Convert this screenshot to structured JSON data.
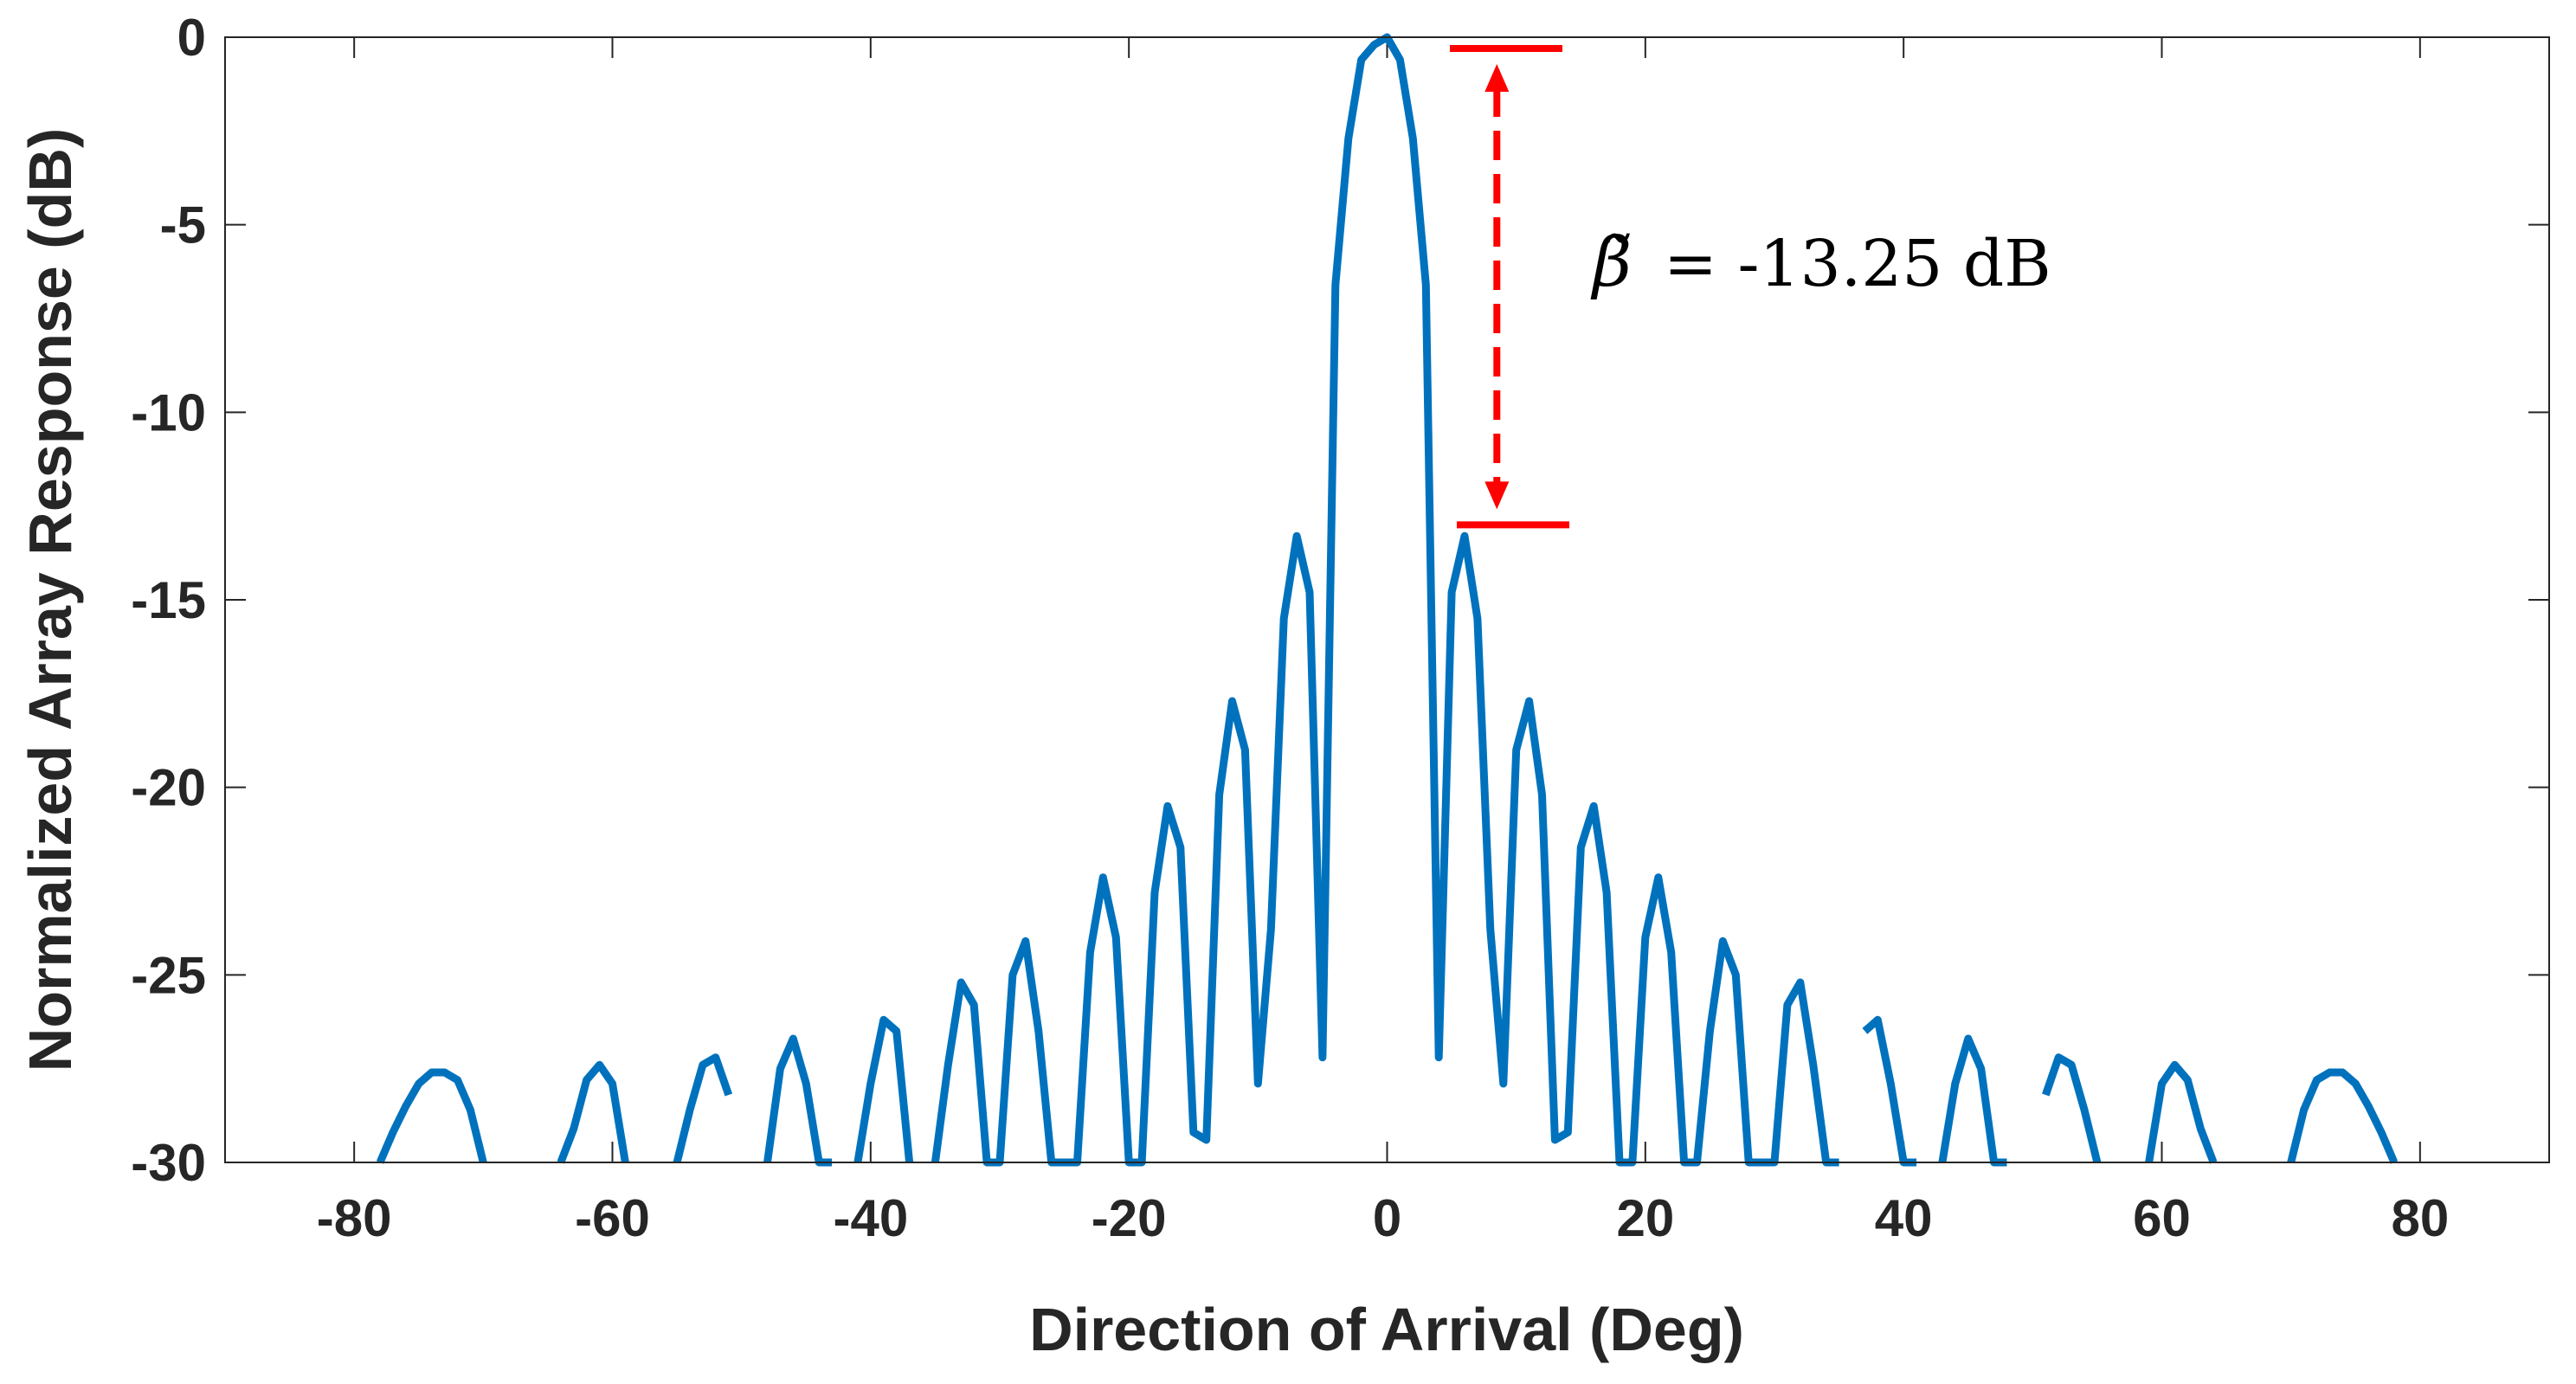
{
  "chart_data": {
    "type": "line",
    "title": "",
    "xlabel": "Direction of Arrival (Deg)",
    "ylabel": "Normalized Array Response (dB)",
    "xlim": [
      -90,
      90
    ],
    "ylim": [
      -30,
      0
    ],
    "xticks": [
      -80,
      -60,
      -40,
      -20,
      0,
      20,
      40,
      60,
      80
    ],
    "yticks": [
      0,
      -5,
      -10,
      -15,
      -20,
      -25,
      -30
    ],
    "xtick_labels": [
      "-80",
      "-60",
      "-40",
      "-20",
      "0",
      "20",
      "40",
      "60",
      "80"
    ],
    "ytick_labels": [
      "0",
      "-5",
      "-10",
      "-15",
      "-20",
      "-25",
      "-30"
    ],
    "grid": false,
    "series": [
      {
        "name": "Normalized Array Response",
        "color": "#0072BD",
        "x": [
          -78,
          -77,
          -76,
          -75,
          -74,
          -73,
          -72,
          -71,
          -70,
          -64,
          -63,
          -62,
          -61,
          -60,
          -59,
          -55,
          -54,
          -53,
          -52,
          -51,
          -48,
          -47,
          -46,
          -45,
          -44,
          -43,
          -41,
          -40,
          -39,
          -38,
          -37,
          -35,
          -34,
          -33,
          -32,
          -31,
          -30,
          -29,
          -28,
          -27,
          -26,
          -25,
          -24,
          -23,
          -22,
          -21,
          -20,
          -19,
          -18,
          -17,
          -16,
          -15,
          -14,
          -13,
          -12,
          -11,
          -10,
          -9,
          -8,
          -7,
          -6,
          -5,
          -4,
          -3,
          -2,
          -1,
          0,
          1,
          2,
          3,
          4,
          5,
          6,
          7,
          8,
          9,
          10,
          11,
          12,
          13,
          14,
          15,
          16,
          17,
          18,
          19,
          20,
          21,
          22,
          23,
          24,
          25,
          26,
          27,
          28,
          29,
          30,
          31,
          32,
          33,
          34,
          35,
          37,
          38,
          39,
          40,
          41,
          43,
          44,
          45,
          46,
          47,
          48,
          51,
          52,
          53,
          54,
          55,
          59,
          60,
          61,
          62,
          63,
          64,
          70,
          71,
          72,
          73,
          74,
          75,
          76,
          77,
          78
        ],
        "y": [
          -30,
          -29.2,
          -28.5,
          -27.9,
          -27.6,
          -27.6,
          -27.8,
          -28.6,
          -30,
          -30,
          -29.1,
          -27.8,
          -27.4,
          -27.9,
          -30,
          -30,
          -28.6,
          -27.4,
          -27.2,
          -28.2,
          -30,
          -27.5,
          -26.7,
          -27.9,
          -30,
          -30,
          -30,
          -27.9,
          -26.2,
          -26.5,
          -30,
          -30,
          -27.4,
          -25.2,
          -25.8,
          -30,
          -30,
          -25.0,
          -24.1,
          -26.5,
          -30,
          -30,
          -30,
          -24.4,
          -22.4,
          -24.0,
          -30,
          -30,
          -22.8,
          -20.5,
          -21.6,
          -29.2,
          -29.4,
          -20.2,
          -17.7,
          -19.0,
          -27.9,
          -23.8,
          -15.5,
          -13.3,
          -14.8,
          -27.2,
          -6.6,
          -2.7,
          -0.6,
          -0.2,
          0,
          -0.6,
          -2.7,
          -6.6,
          -27.2,
          -14.8,
          -13.3,
          -15.5,
          -23.8,
          -27.9,
          -19.0,
          -17.7,
          -20.2,
          -29.4,
          -29.2,
          -21.6,
          -20.5,
          -22.8,
          -30,
          -30,
          -24.0,
          -22.4,
          -24.4,
          -30,
          -30,
          -26.5,
          -24.1,
          -25.0,
          -30,
          -30,
          -30,
          -25.8,
          -25.2,
          -27.4,
          -30,
          -30,
          -26.5,
          -26.2,
          -27.9,
          -30,
          -30,
          -30,
          -27.9,
          -26.7,
          -27.5,
          -30,
          -30,
          -28.2,
          -27.2,
          -27.4,
          -28.6,
          -30,
          -30,
          -27.9,
          -27.4,
          -27.8,
          -29.1,
          -30,
          -30,
          -28.6,
          -27.8,
          -27.6,
          -27.6,
          -27.9,
          -28.5,
          -29.2,
          -30
        ]
      }
    ],
    "annotation": {
      "symbol": "β̃",
      "text": "= -13.25 dB",
      "color": "#FF0000",
      "top_db": -0.3,
      "bottom_db": -13.0,
      "arrow_x_deg": 8.5
    }
  }
}
